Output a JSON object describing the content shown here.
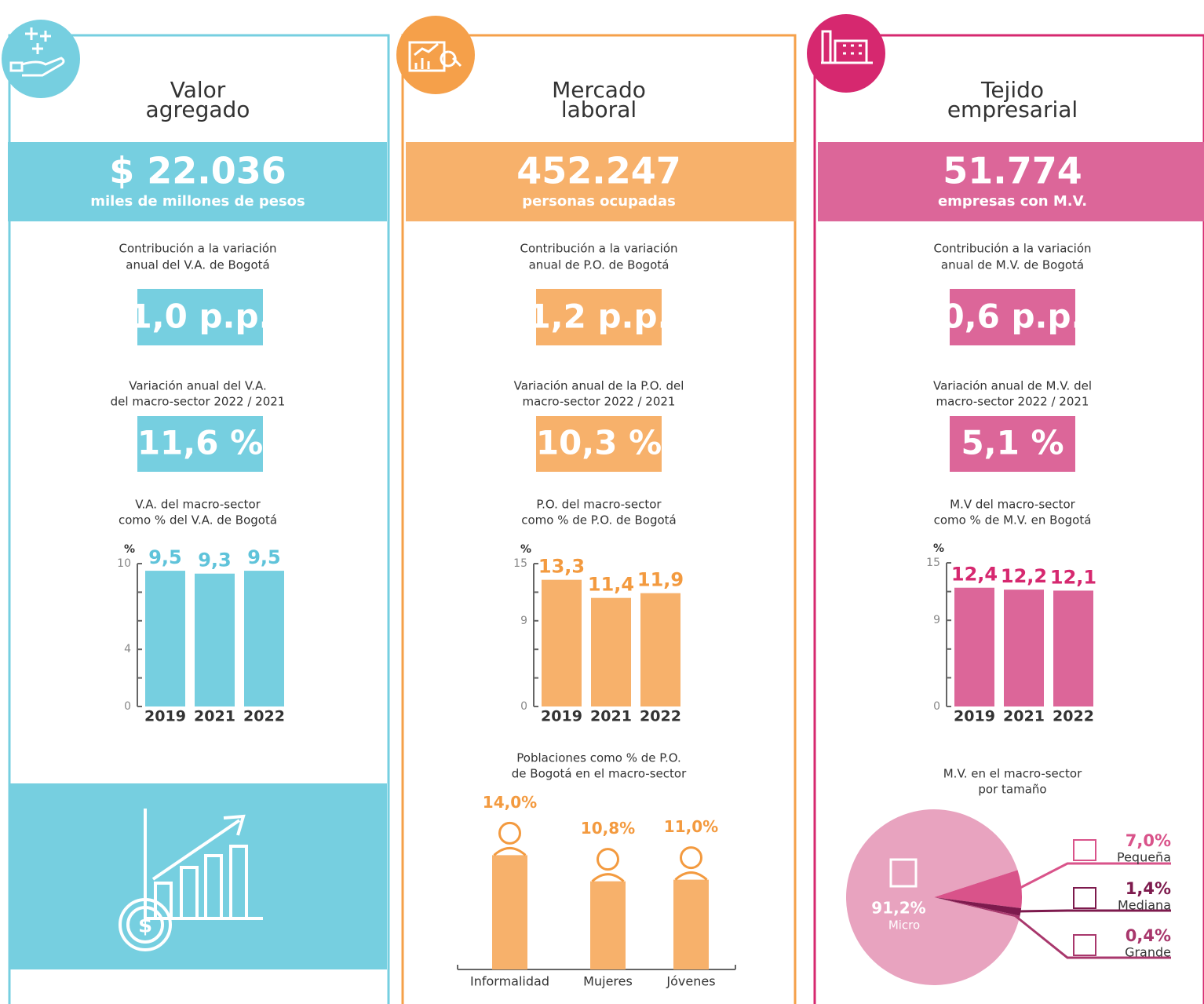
{
  "panels": [
    {
      "title": [
        "Valor",
        "agregado"
      ],
      "headline": "$ 22.036",
      "headline_sub": "miles de millones de pesos",
      "contribution_label": [
        "Contribución a la variación",
        "anual del V.A. de Bogotá"
      ],
      "contribution": "1,0 p.p.",
      "variation_label": [
        "Variación anual del V.A.",
        "del macro-sector 2022 / 2021"
      ],
      "variation": "11,6 %",
      "color": "#76cfe0",
      "border_color": "#76cfe0"
    },
    {
      "title": [
        "Mercado",
        "laboral"
      ],
      "headline": "452.247",
      "headline_sub": "personas ocupadas",
      "contribution_label": [
        "Contribución a la variación",
        "anual de P.O. de Bogotá"
      ],
      "contribution": "1,2 p.p.",
      "variation_label": [
        "Variación anual de la P.O. del",
        "macro-sector 2022 / 2021"
      ],
      "variation": "10,3 %",
      "color": "#f7b16b",
      "border_color": "#f5a04a"
    },
    {
      "title": [
        "Tejido",
        "empresarial"
      ],
      "headline": "51.774",
      "headline_sub": "empresas con M.V.",
      "contribution_label": [
        "Contribución a la variación",
        "anual de M.V. de Bogotá"
      ],
      "contribution": "0,6 p.p.",
      "variation_label": [
        "Variación anual de M.V. del",
        "macro-sector 2022 / 2021"
      ],
      "variation": "5,1 %",
      "color": "#dc6699",
      "border_color": "#d6286f"
    }
  ],
  "chart_data": [
    {
      "type": "bar",
      "title": [
        "V.A. del macro-sector",
        "como % del V.A. de Bogotá"
      ],
      "ylabel": "%",
      "categories": [
        "2019",
        "2021",
        "2022"
      ],
      "values": [
        9.5,
        9.3,
        9.5
      ],
      "value_labels": [
        "9,5",
        "9,3",
        "9,5"
      ],
      "color": "#76cfe0",
      "label_color": "#5fc3da",
      "ylim": [
        0,
        10
      ],
      "yticks": [
        0,
        4,
        10
      ],
      "minor_yticks": [
        2,
        6,
        8
      ]
    },
    {
      "type": "bar",
      "title": [
        "P.O. del macro-sector",
        "como % de P.O. de Bogotá"
      ],
      "ylabel": "%",
      "categories": [
        "2019",
        "2021",
        "2022"
      ],
      "values": [
        13.3,
        11.4,
        11.9
      ],
      "value_labels": [
        "13,3",
        "11,4",
        "11,9"
      ],
      "color": "#f7b16b",
      "label_color": "#f39a3f",
      "ylim": [
        0,
        15
      ],
      "yticks": [
        0,
        9,
        15
      ],
      "minor_yticks": [
        3,
        6,
        12
      ]
    },
    {
      "type": "bar",
      "title": [
        "M.V del macro-sector",
        "como % de M.V. en Bogotá"
      ],
      "ylabel": "%",
      "categories": [
        "2019",
        "2021",
        "2022"
      ],
      "values": [
        12.4,
        12.2,
        12.1
      ],
      "value_labels": [
        "12,4",
        "12,2",
        "12,1"
      ],
      "color": "#dc6699",
      "label_color": "#d6286f",
      "ylim": [
        0,
        15
      ],
      "yticks": [
        0,
        9,
        15
      ],
      "minor_yticks": [
        3,
        6,
        12
      ]
    },
    {
      "type": "bar",
      "title": [
        "Poblaciones como % de P.O.",
        "de Bogotá en el macro-sector"
      ],
      "categories": [
        "Informalidad",
        "Mujeres",
        "Jóvenes"
      ],
      "values": [
        14.0,
        10.8,
        11.0
      ],
      "value_labels": [
        "14,0%",
        "10,8%",
        "11,0%"
      ],
      "color": "#f7b16b",
      "label_color": "#f39a3f"
    },
    {
      "type": "pie",
      "title": [
        "M.V. en el macro-sector",
        "por tamaño"
      ],
      "categories": [
        "Micro",
        "Pequeña",
        "Mediana",
        "Grande"
      ],
      "values": [
        91.2,
        7.0,
        1.4,
        0.4
      ],
      "value_labels": [
        "91,2%",
        "7,0%",
        "1,4%",
        "0,4%"
      ],
      "colors": [
        "#e8a3bf",
        "#d9538a",
        "#7d1a4d",
        "#a8376c"
      ]
    }
  ]
}
